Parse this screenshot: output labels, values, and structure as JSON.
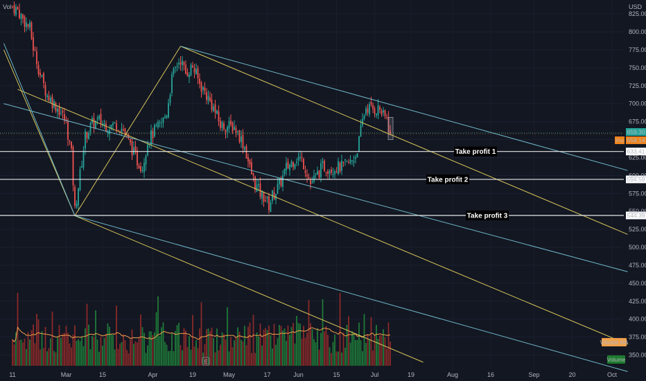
{
  "header": {
    "vol_label": "Vol",
    "currency": "USD"
  },
  "colors": {
    "bg": "#131722",
    "up": "#26a69a",
    "down": "#ef5350",
    "vol_up": "#1f7a38",
    "vol_down": "#8a2a2a",
    "channel_yellow": "#d8c65a",
    "channel_cyan": "#6fb8c8",
    "level_line": "#e8e8e8",
    "current_tag": "#26a69a",
    "pre_tag": "#f0841c",
    "vol_ma": "#f0a04b",
    "volume_tag": "#1e7a2e"
  },
  "chart_data": {
    "type": "candlestick",
    "y_unit": "USD",
    "ylim": [
      325,
      837
    ],
    "y_ticks": [
      "825.00",
      "800.00",
      "775.00",
      "750.00",
      "725.00",
      "700.00",
      "675.00",
      "650.00",
      "625.00",
      "600.00",
      "575.00",
      "550.00",
      "525.00",
      "500.00",
      "475.00",
      "450.00",
      "425.00",
      "400.00",
      "375.00",
      "350.00"
    ],
    "y_tick_values": [
      825,
      800,
      775,
      750,
      725,
      700,
      675,
      650,
      625,
      600,
      575,
      550,
      525,
      500,
      475,
      450,
      425,
      400,
      375,
      350
    ],
    "x_ticks": [
      "11",
      "Mar",
      "15",
      "Apr",
      "19",
      "May",
      "17",
      "Jun",
      "15",
      "Jul",
      "19",
      "Aug",
      "16",
      "Sep",
      "20",
      "Oct"
    ],
    "x_tick_values": [
      0,
      31,
      52,
      81,
      104,
      125,
      147,
      165,
      187,
      209,
      230,
      254,
      276,
      301,
      323,
      346
    ],
    "x_unit": "trading-day index (0 = Feb 11)",
    "last_price": "659.30",
    "pre_label": "Pre",
    "pre_price": "658.14",
    "levels": [
      {
        "name": "Take profit 1",
        "value": 633.41,
        "label": "633.41"
      },
      {
        "name": "Take profit 2",
        "value": 594.59,
        "label": "594.59"
      },
      {
        "name": "Take profit 3",
        "value": 544.39,
        "label": "544.39"
      }
    ],
    "trend_lines": [
      {
        "color": "yellow",
        "points": [
          [
            -5,
            775
          ],
          [
            36,
            544
          ]
        ]
      },
      {
        "color": "yellow",
        "points": [
          [
            36,
            544
          ],
          [
            97,
            780
          ]
        ]
      },
      {
        "color": "yellow",
        "points": [
          [
            97,
            780
          ],
          [
            355,
            518
          ]
        ]
      },
      {
        "color": "yellow",
        "points": [
          [
            3,
            720
          ],
          [
            355,
            365
          ]
        ]
      },
      {
        "color": "yellow",
        "points": [
          [
            36,
            544
          ],
          [
            237,
            340
          ]
        ]
      },
      {
        "color": "cyan",
        "points": [
          [
            -5,
            700
          ],
          [
            355,
            466
          ]
        ]
      },
      {
        "color": "cyan",
        "points": [
          [
            97,
            780
          ],
          [
            355,
            607
          ]
        ]
      },
      {
        "color": "cyan",
        "points": [
          [
            36,
            544
          ],
          [
            355,
            327
          ]
        ]
      },
      {
        "color": "cyan",
        "points": [
          [
            -5,
            784
          ],
          [
            36,
            544
          ]
        ]
      }
    ],
    "anchors": [
      [
        0,
        835
      ],
      [
        3,
        830
      ],
      [
        6,
        818
      ],
      [
        10,
        805
      ],
      [
        12,
        778
      ],
      [
        14,
        760
      ],
      [
        16,
        740
      ],
      [
        20,
        712
      ],
      [
        24,
        700
      ],
      [
        28,
        688
      ],
      [
        31,
        672
      ],
      [
        34,
        630
      ],
      [
        36,
        552
      ],
      [
        39,
        602
      ],
      [
        42,
        655
      ],
      [
        46,
        672
      ],
      [
        50,
        676
      ],
      [
        55,
        668
      ],
      [
        60,
        672
      ],
      [
        64,
        664
      ],
      [
        68,
        642
      ],
      [
        72,
        620
      ],
      [
        75,
        612
      ],
      [
        78,
        648
      ],
      [
        82,
        662
      ],
      [
        86,
        672
      ],
      [
        89,
        688
      ],
      [
        92,
        735
      ],
      [
        95,
        755
      ],
      [
        97,
        762
      ],
      [
        100,
        742
      ],
      [
        104,
        752
      ],
      [
        108,
        728
      ],
      [
        112,
        712
      ],
      [
        116,
        694
      ],
      [
        120,
        670
      ],
      [
        124,
        668
      ],
      [
        128,
        668
      ],
      [
        131,
        655
      ],
      [
        134,
        640
      ],
      [
        137,
        610
      ],
      [
        140,
        588
      ],
      [
        143,
        575
      ],
      [
        146,
        568
      ],
      [
        148,
        558
      ],
      [
        150,
        572
      ],
      [
        152,
        578
      ],
      [
        155,
        592
      ],
      [
        158,
        610
      ],
      [
        161,
        618
      ],
      [
        164,
        625
      ],
      [
        167,
        622
      ],
      [
        170,
        605
      ],
      [
        172,
        588
      ],
      [
        175,
        598
      ],
      [
        179,
        612
      ],
      [
        184,
        610
      ],
      [
        190,
        612
      ],
      [
        195,
        618
      ],
      [
        198,
        628
      ],
      [
        200,
        648
      ],
      [
        202,
        676
      ],
      [
        204,
        695
      ],
      [
        206,
        694
      ],
      [
        209,
        692
      ],
      [
        212,
        693
      ],
      [
        214,
        682
      ],
      [
        216,
        680
      ],
      [
        218,
        655
      ]
    ],
    "series": [
      {
        "name": "Volume",
        "type": "bar",
        "ma_label": "Volume MA"
      }
    ]
  }
}
